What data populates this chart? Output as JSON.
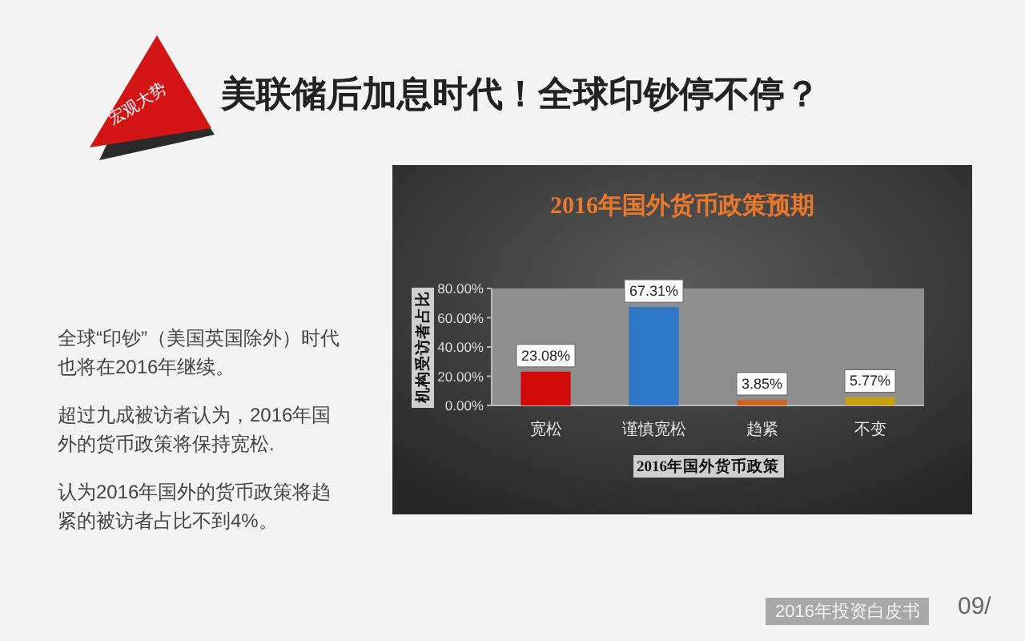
{
  "chart_data": [
    {
      "type": "other",
      "title": "美联储后加息时代！全球印钞停不停？",
      "subtitle": "宏观大势",
      "annotations": [
        "全球“印钞”（美国英国除外）时代也将在2016年继续。",
        "超过九成被访者认为，2016年国外的货币政策将保持宽松.",
        "认为2016年国外的货币政策将趋紧的被访者占比不到4%。",
        "2016年投资白皮书",
        "09/"
      ]
    },
    {
      "type": "bar",
      "title": "2016年国外货币政策预期",
      "xlabel": "2016年国外货币政策",
      "ylabel": "机构受访者占比",
      "categories": [
        "宽松",
        "谨慎宽松",
        "趋紧",
        "不变"
      ],
      "values": [
        23.08,
        67.31,
        3.85,
        5.77
      ],
      "colors": [
        "#d20a0a",
        "#2f78c8",
        "#d2641e",
        "#c8a014"
      ],
      "value_labels": [
        "23.08%",
        "67.31%",
        "3.85%",
        "5.77%"
      ],
      "ylim": [
        0,
        80
      ],
      "yticks": [
        {
          "value": 0,
          "label": "0.00%"
        },
        {
          "value": 20,
          "label": "20.00%"
        },
        {
          "value": 40,
          "label": "40.00%"
        },
        {
          "value": 60,
          "label": "60.00%"
        },
        {
          "value": 80,
          "label": "80.00%"
        }
      ]
    }
  ]
}
